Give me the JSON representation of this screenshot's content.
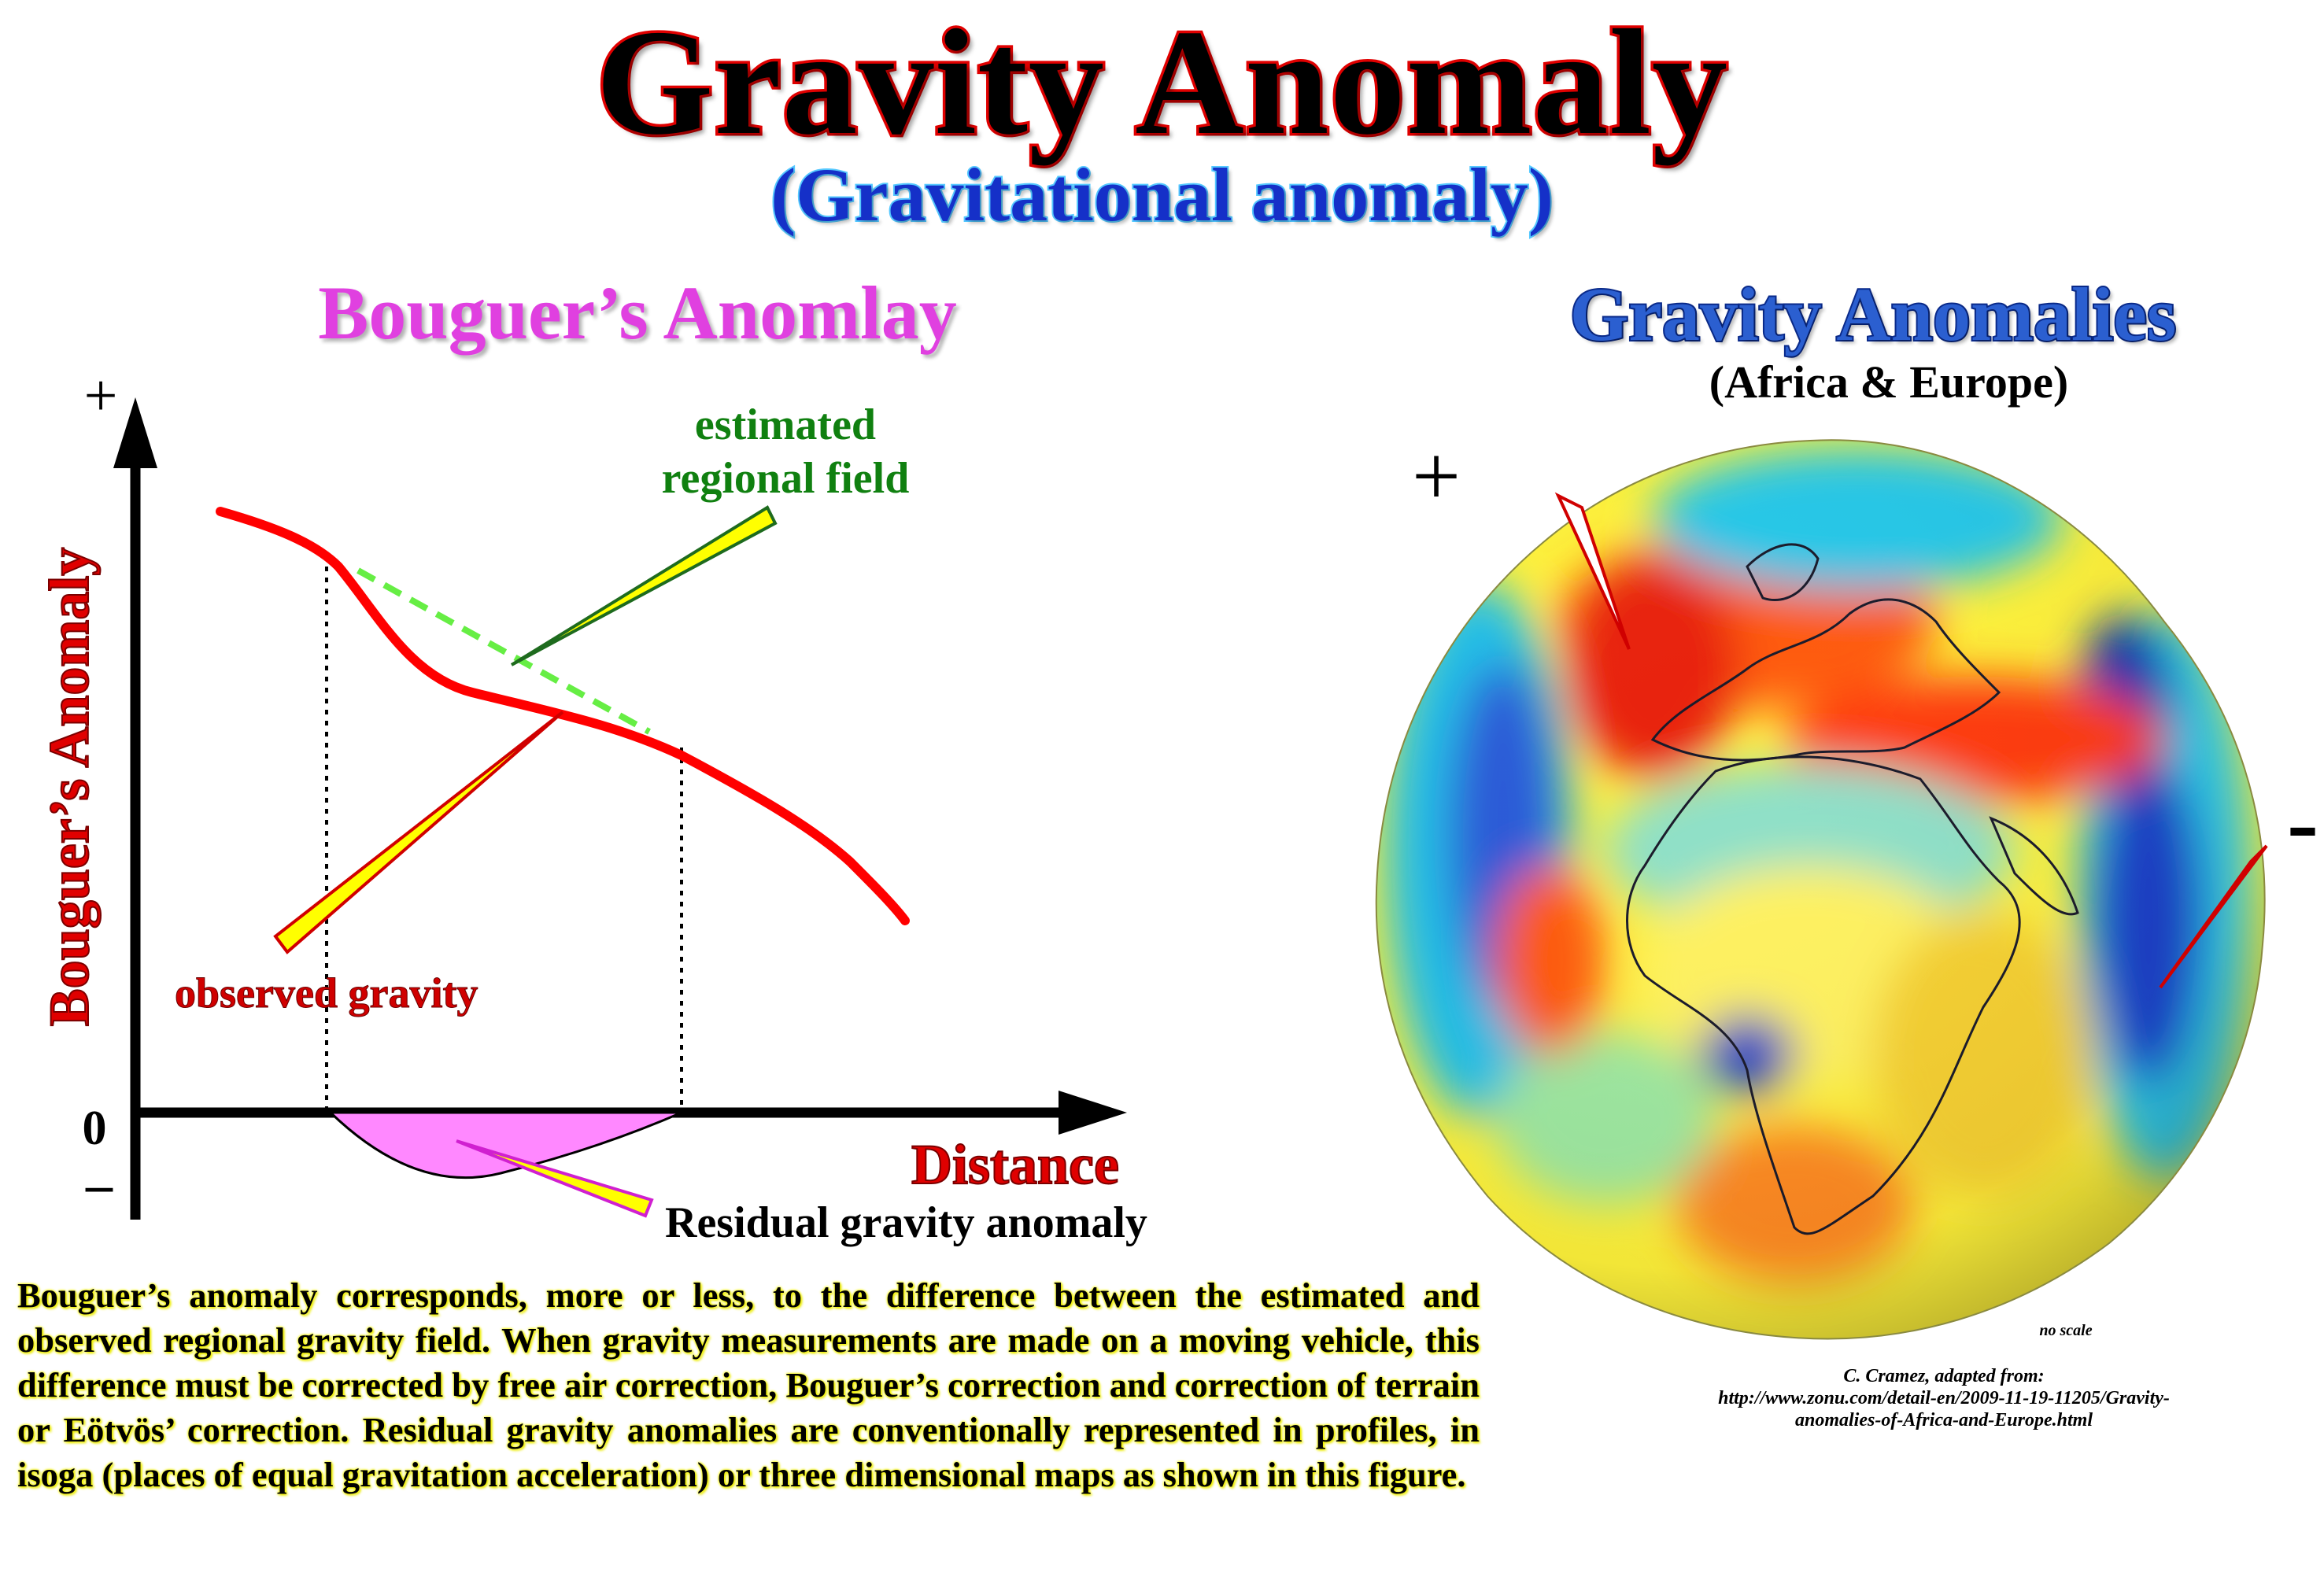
{
  "title": "Gravity Anomaly",
  "subtitle": "(Gravitational anomaly)",
  "diagram": {
    "heading": "Bouguer’s Anomlay",
    "y_axis_label": "Bouguer’s Anomaly",
    "x_axis_label": "Distance",
    "plus_sign": "+",
    "zero_label": "0",
    "minus_sign": "–",
    "labels": {
      "regional_line1": "estimated",
      "regional_line2": "regional field",
      "observed": "observed gravity",
      "residual": "Residual gravity anomaly"
    },
    "colors": {
      "observed_curve": "#ff0000",
      "regional_line": "#66ee44",
      "residual_fill": "#ff88ff",
      "arrow_fill": "#ffff00",
      "regional_label": "#108010"
    }
  },
  "map": {
    "heading": "Gravity Anomalies",
    "caption": "(Africa & Europe)",
    "plus_sign": "+",
    "minus_sign": "-",
    "no_scale": "no scale",
    "credit_line1": "C. Cramez, adapted from:",
    "credit_line2": "http://www.zonu.com/detail-en/2009-11-19-11205/Gravity-",
    "credit_line3": "anomalies-of-Africa-and-Europe.html"
  },
  "description": "Bouguer’s anomaly corresponds, more or less, to the difference between the estimated and observed regional gravity field. When gravity measurements are made on a moving vehicle, this difference must be corrected by free air correction, Bouguer’s correction and correction of terrain or Eötvös’ correction. Residual gravity anomalies are conventionally represented in profiles, in isoga (places of equal gravitation acceleration) or three dimensional maps as shown in this figure."
}
